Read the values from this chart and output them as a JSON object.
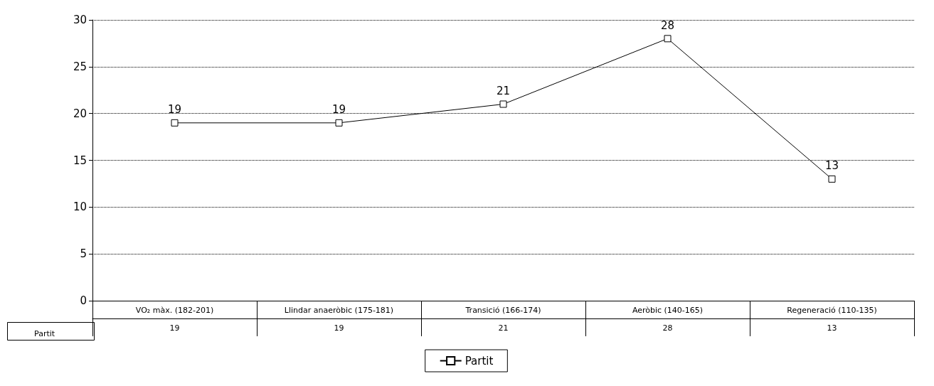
{
  "chart_data": {
    "type": "line",
    "categories": [
      "VO₂ màx. (182-201)",
      "Llindar anaeròbic (175-181)",
      "Transició (166-174)",
      "Aeròbic (140-165)",
      "Regeneració (110-135)"
    ],
    "series": [
      {
        "name": "Partit",
        "color": "#000000",
        "values": [
          19,
          19,
          21,
          28,
          13
        ],
        "value_labels": [
          "19",
          "19",
          "21",
          "28",
          "13"
        ]
      }
    ],
    "ylim": [
      0,
      30
    ],
    "yticks": [
      0,
      5,
      10,
      15,
      20,
      25,
      30
    ],
    "grid": "y",
    "legend": "bottom",
    "marker": "square",
    "line_style": "solid",
    "annotations": [
      "19",
      "19",
      "21",
      "28",
      "13"
    ]
  }
}
